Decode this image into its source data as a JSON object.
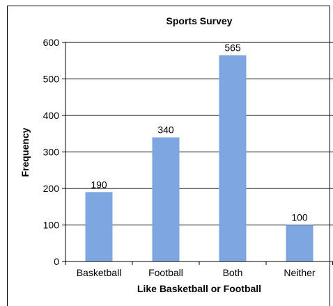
{
  "chart_data": {
    "type": "bar",
    "title": "Sports Survey",
    "xlabel": "Like Basketball or Football",
    "ylabel": "Frequency",
    "categories": [
      "Basketball",
      "Football",
      "Both",
      "Neither"
    ],
    "values": [
      190,
      340,
      565,
      100
    ],
    "data_labels": [
      "190",
      "340",
      "565",
      "100"
    ],
    "ylim": [
      0,
      600
    ],
    "yticks": [
      0,
      100,
      200,
      300,
      400,
      500,
      600
    ],
    "grid": true,
    "legend": "none",
    "bar_color": "#7ea6e0"
  }
}
